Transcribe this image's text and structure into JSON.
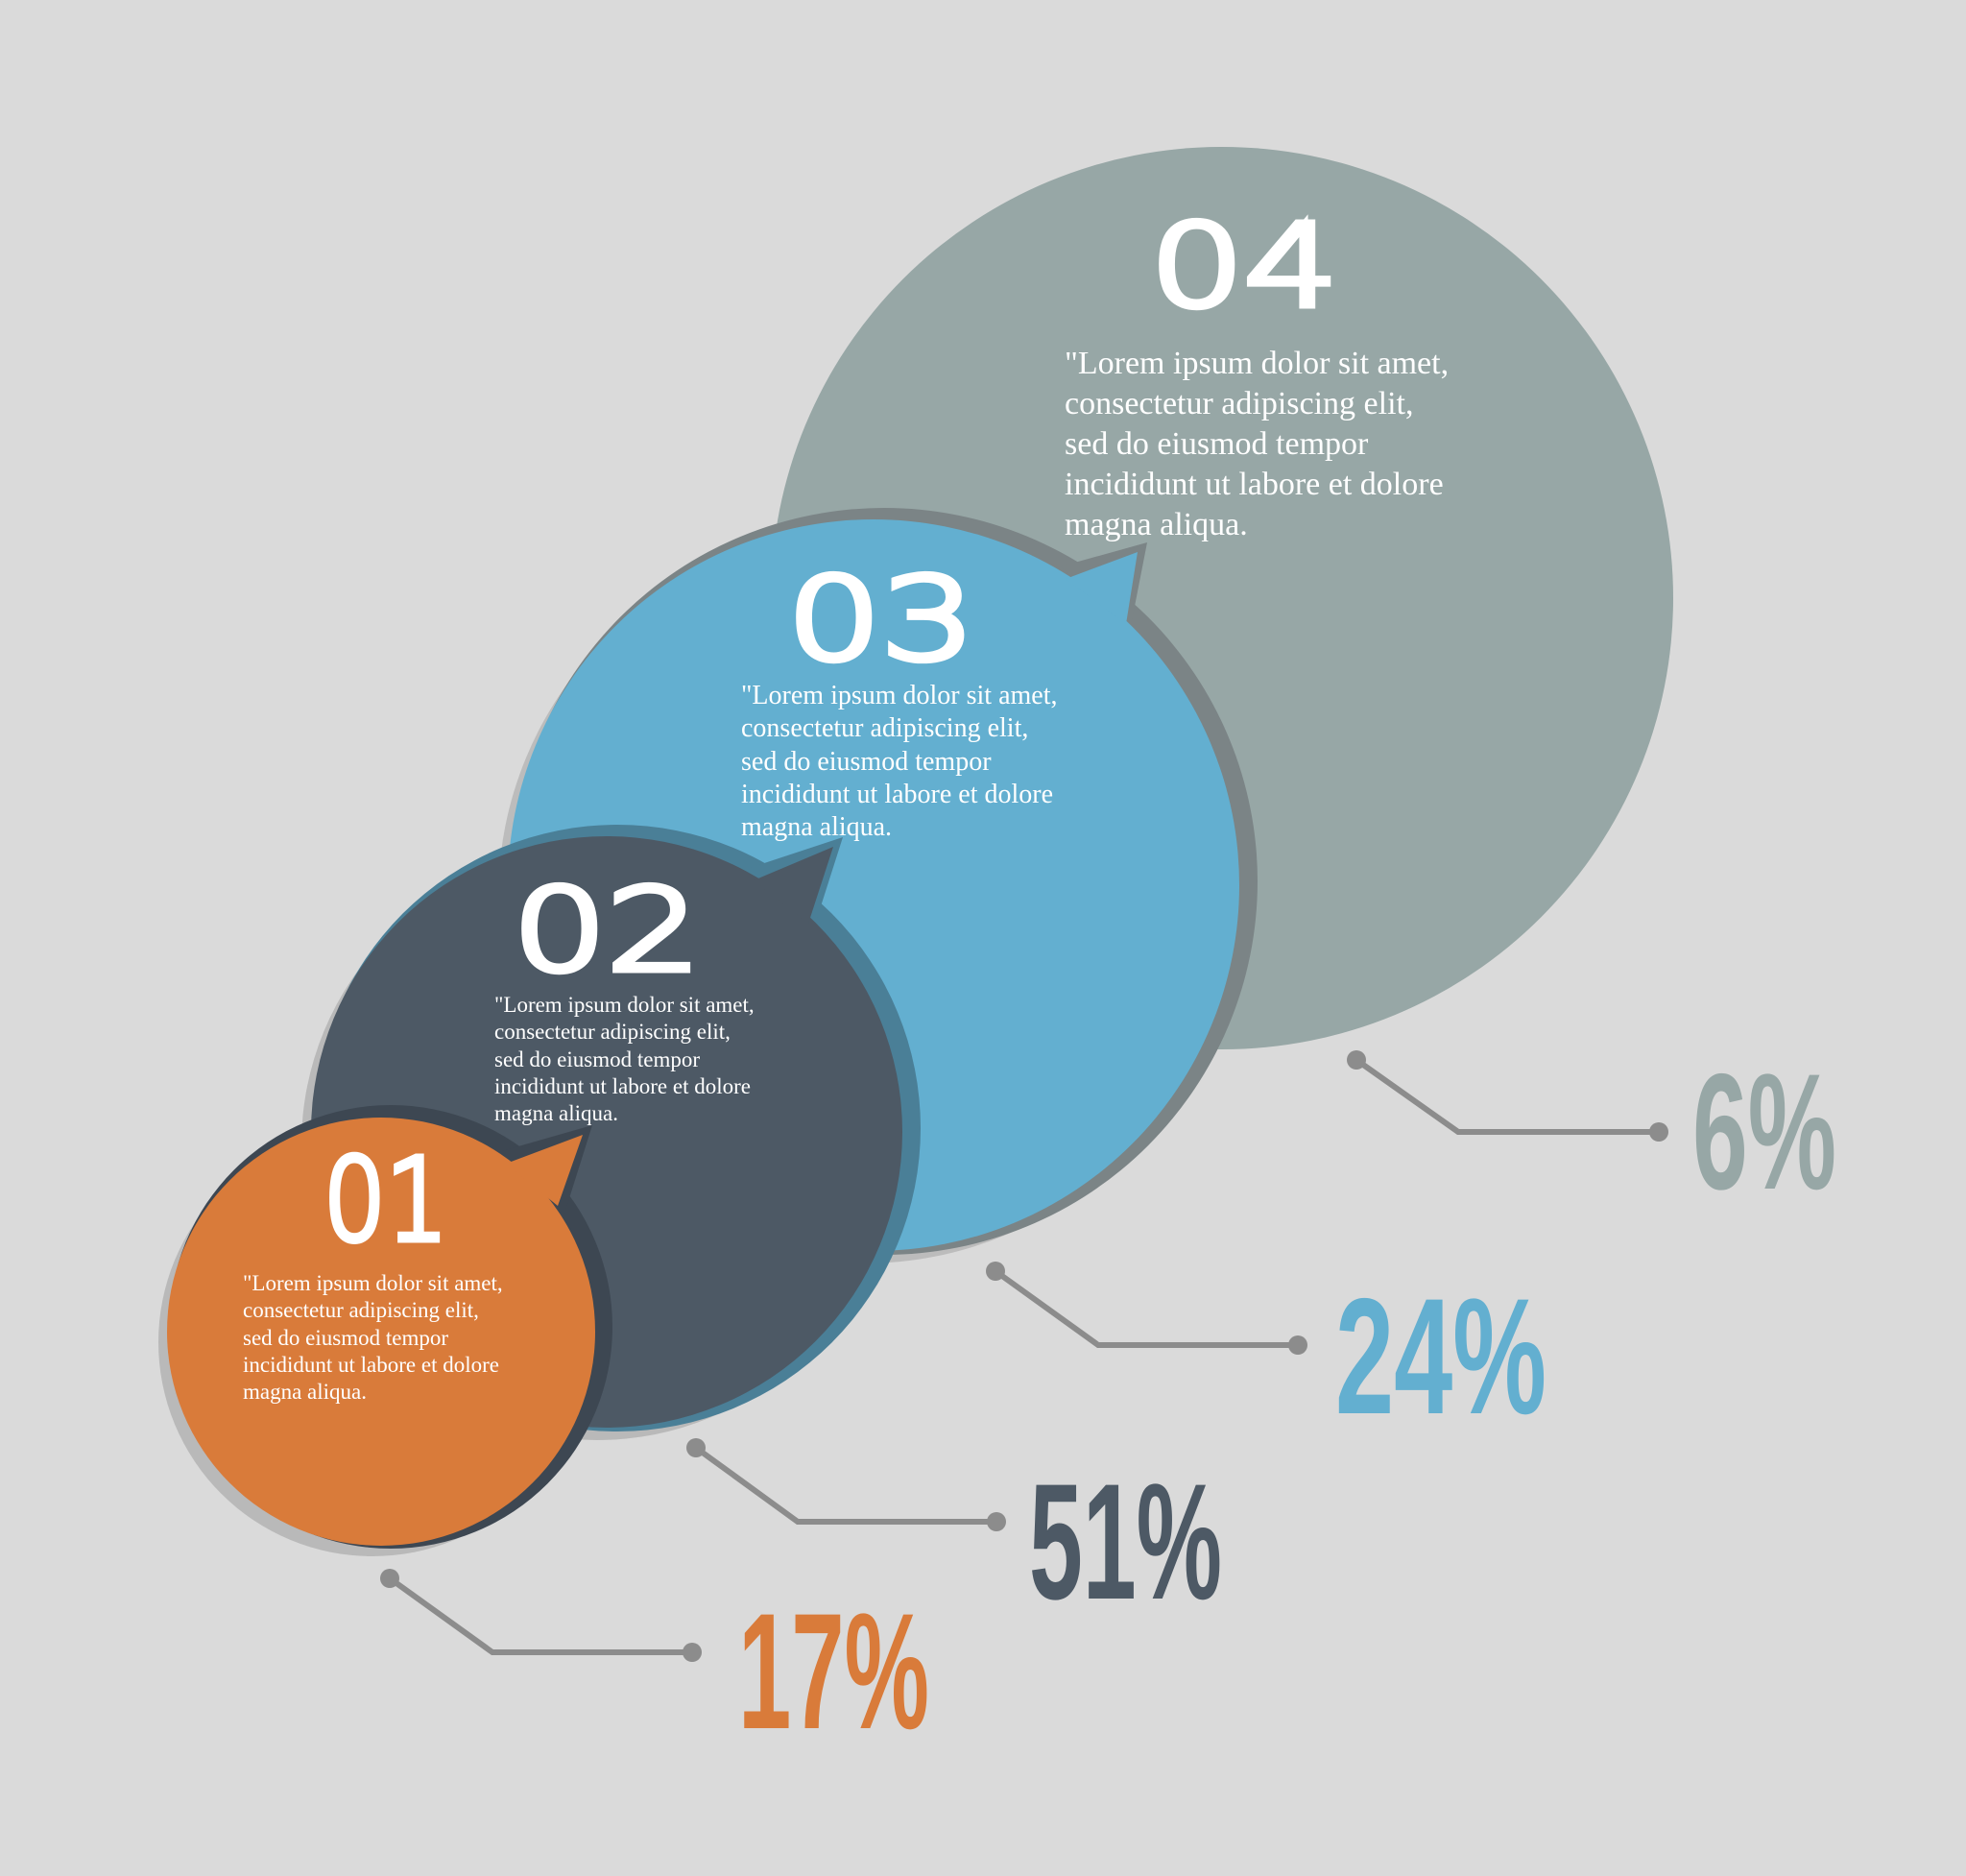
{
  "colors": {
    "background": "#dadada",
    "step1": "#d97b3a",
    "step2": "#4d5965",
    "step3": "#63afd0",
    "step4": "#97a7a6",
    "connector": "#8c8c8c"
  },
  "steps": [
    {
      "number": "01",
      "lines": [
        "\"Lorem ipsum dolor sit amet,",
        "consectetur adipiscing elit,",
        "sed do eiusmod tempor",
        "incididunt ut labore et dolore",
        "magna aliqua."
      ],
      "percent": "17%"
    },
    {
      "number": "02",
      "lines": [
        "\"Lorem ipsum dolor sit amet,",
        "consectetur adipiscing elit,",
        "sed do eiusmod tempor",
        "incididunt ut labore et dolore",
        "magna aliqua."
      ],
      "percent": "51%"
    },
    {
      "number": "03",
      "lines": [
        "\"Lorem ipsum dolor sit amet,",
        "consectetur adipiscing elit,",
        "sed do eiusmod tempor",
        "incididunt ut labore et dolore",
        "magna aliqua."
      ],
      "percent": "24%"
    },
    {
      "number": "04",
      "lines": [
        "\"Lorem ipsum dolor sit amet,",
        "consectetur adipiscing elit,",
        "sed do eiusmod tempor",
        "incididunt ut labore et dolore",
        "magna aliqua."
      ],
      "percent": "6%"
    }
  ]
}
